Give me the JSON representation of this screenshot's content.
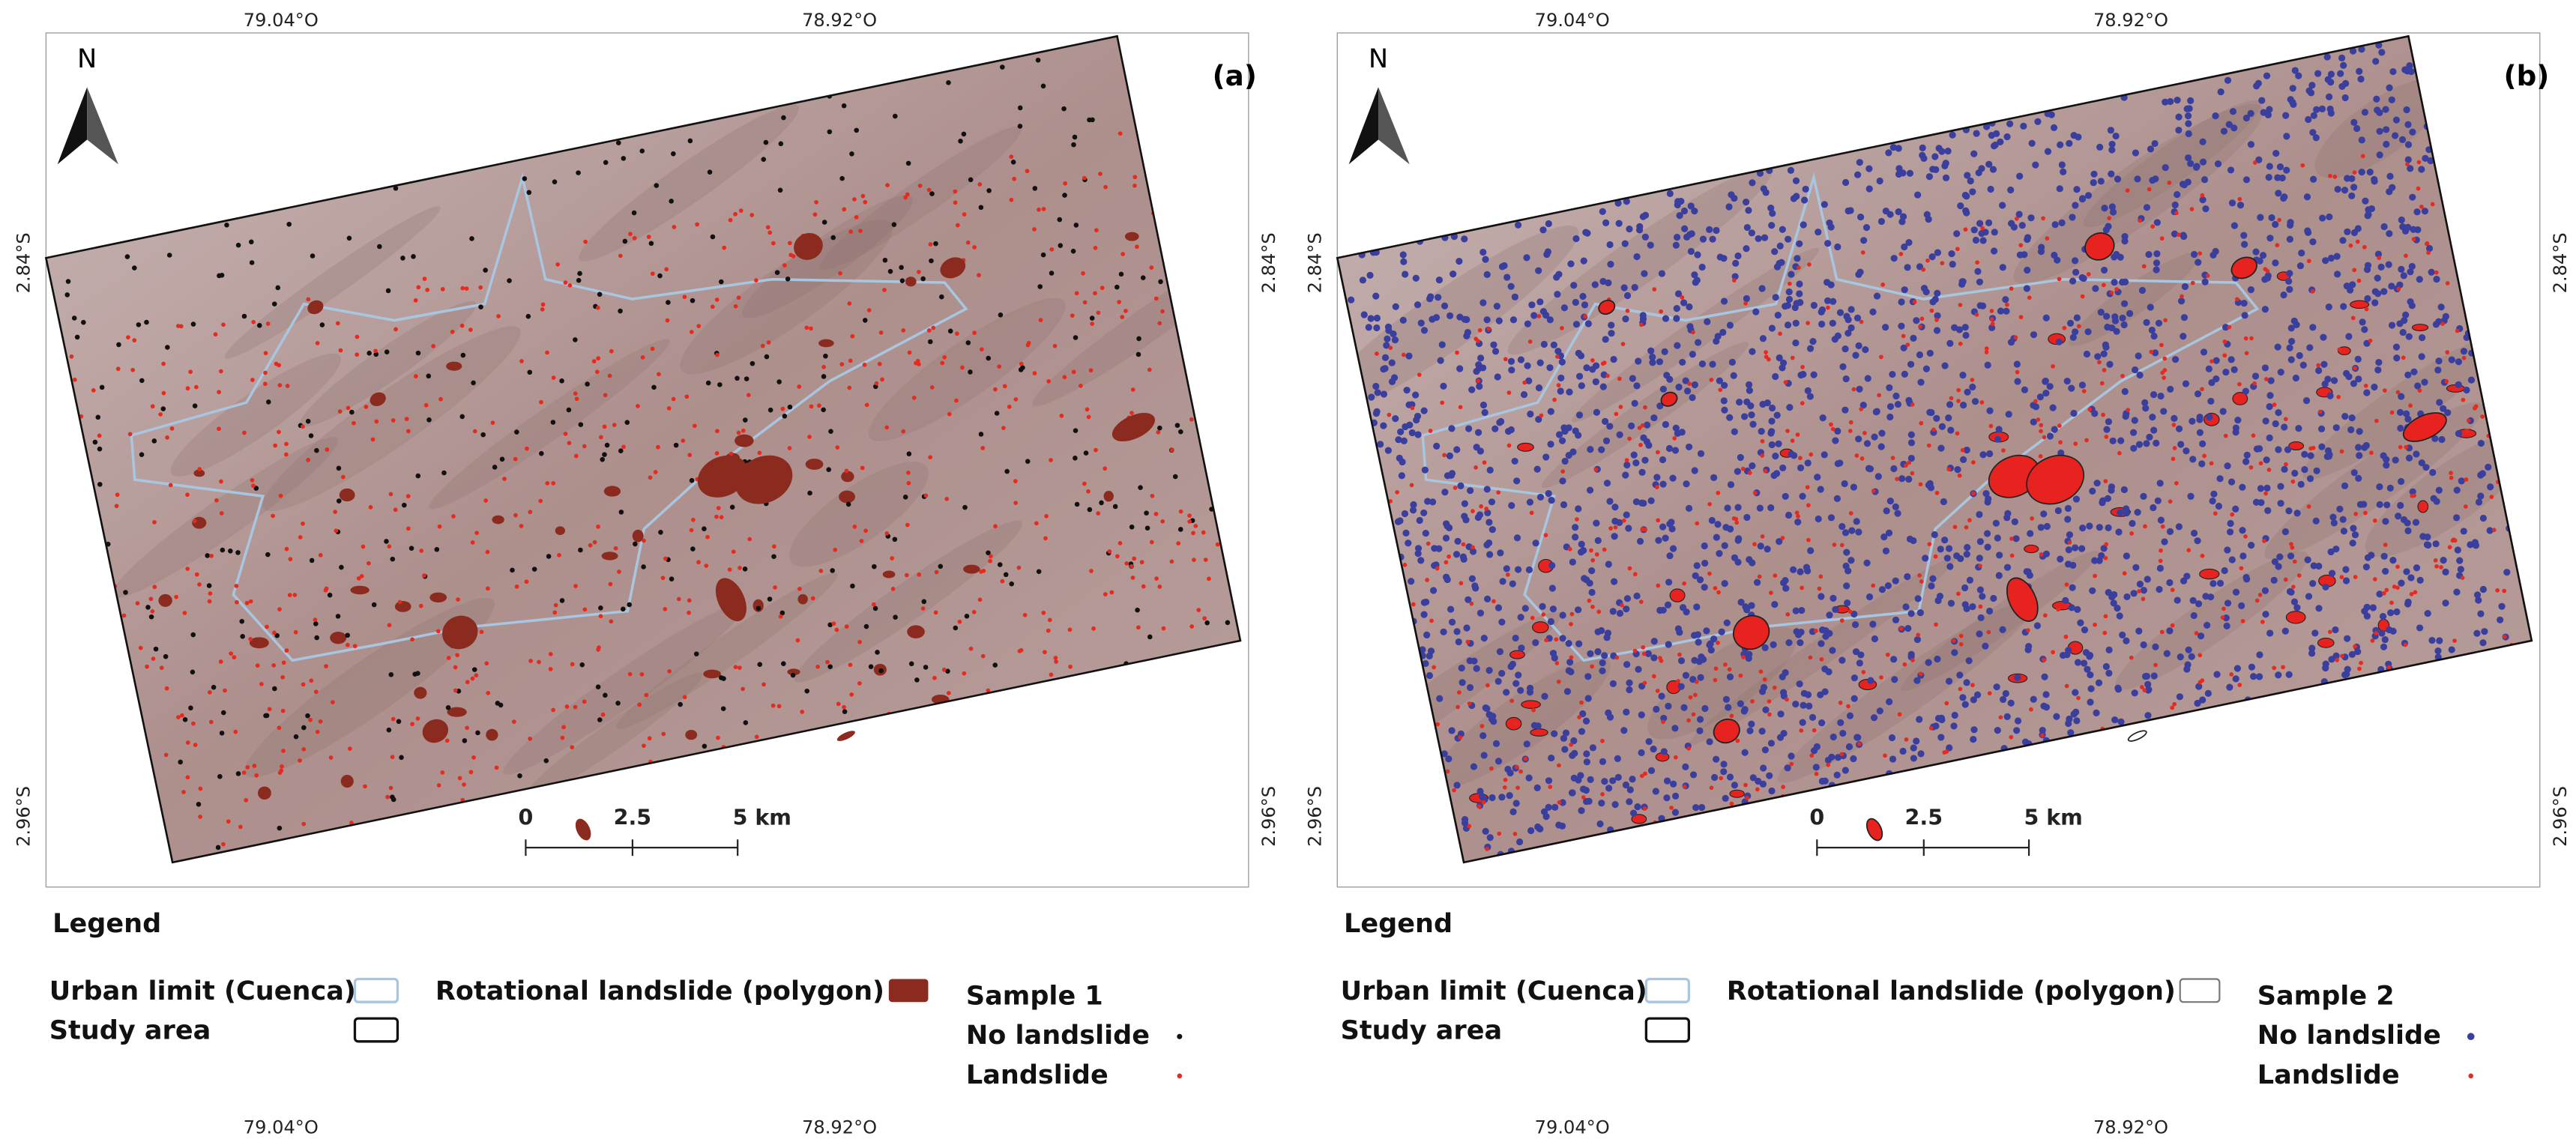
{
  "panels": [
    {
      "label": "(a)",
      "north": "N",
      "top_ticks": [
        "79.04°O",
        "78.92°O"
      ],
      "bottom_ticks": [
        "79.04°O",
        "78.92°O"
      ],
      "left_ticks": [
        "2.84°S",
        "2.96°S"
      ],
      "right_ticks": [
        "2.84°S",
        "2.96°S"
      ],
      "scale_bar": [
        "0",
        "2.5",
        "5 km"
      ],
      "legend": {
        "title": "Legend",
        "urban": "Urban limit (Cuenca)",
        "study": "Study area",
        "rotational": "Rotational landslide (polygon)",
        "sample": "Sample 1",
        "no_landslide": "No landslide",
        "landslide": "Landslide"
      }
    },
    {
      "label": "(b)",
      "north": "N",
      "top_ticks": [
        "79.04°O",
        "78.92°O"
      ],
      "bottom_ticks": [
        "79.04°O",
        "78.92°O"
      ],
      "left_ticks": [
        "2.84°S",
        "2.96°S"
      ],
      "right_ticks": [
        "2.84°S",
        "2.96°S"
      ],
      "scale_bar": [
        "0",
        "2.5",
        "5 km"
      ],
      "legend": {
        "title": "Legend",
        "urban": "Urban limit (Cuenca)",
        "study": "Study area",
        "rotational": "Rotational landslide (polygon)",
        "sample": "Sample 2",
        "no_landslide": "No landslide",
        "landslide": "Landslide"
      }
    }
  ]
}
